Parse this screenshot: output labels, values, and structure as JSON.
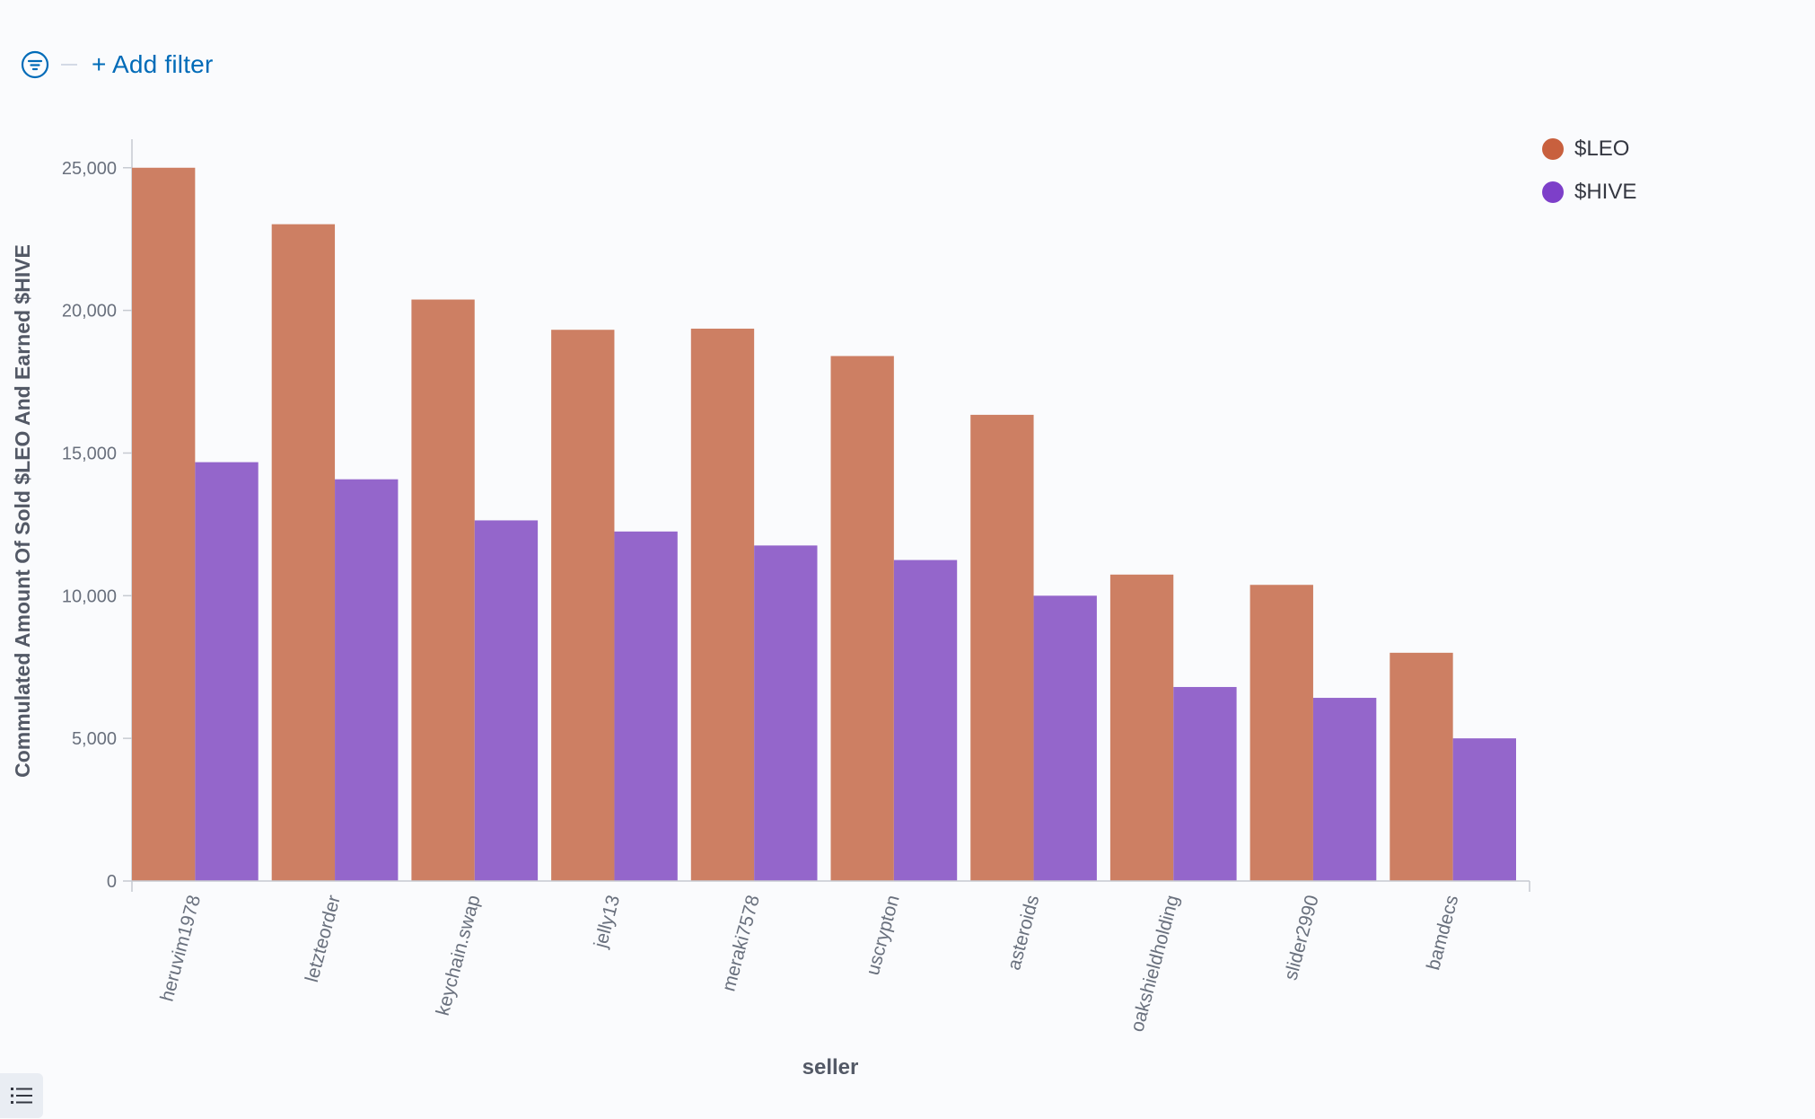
{
  "toolbar": {
    "add_filter_label": "+ Add filter",
    "filter_icon": "filter-icon",
    "list_icon": "list-icon"
  },
  "colors": {
    "leo": "#cd7f63",
    "hive": "#9466cb",
    "leo_legend": "#c8603e",
    "hive_legend": "#7d3fc9",
    "link": "#006bb8"
  },
  "chart_data": {
    "type": "bar",
    "ylabel": "Commulated Amount Of Sold $LEO And Earned $HIVE",
    "xlabel": "seller",
    "categories": [
      "heruvim1978",
      "letzteorder",
      "keychain.swap",
      "jelly13",
      "meraki7578",
      "uscrypton",
      "asteroids",
      "oakshieldholding",
      "slider2990",
      "bamdecs"
    ],
    "series": [
      {
        "name": "$LEO",
        "values": [
          25000,
          23020,
          20380,
          19320,
          19360,
          18400,
          16340,
          10740,
          10380,
          8000
        ]
      },
      {
        "name": "$HIVE",
        "values": [
          14680,
          14080,
          12640,
          12250,
          11760,
          11250,
          10000,
          6800,
          6420,
          5000
        ]
      }
    ],
    "ylim": [
      0,
      26000
    ],
    "yticks": [
      0,
      5000,
      10000,
      15000,
      20000,
      25000
    ],
    "ytick_labels": [
      "0",
      "5,000",
      "10,000",
      "15,000",
      "20,000",
      "25,000"
    ],
    "grid": false,
    "legend_position": "top-right"
  }
}
